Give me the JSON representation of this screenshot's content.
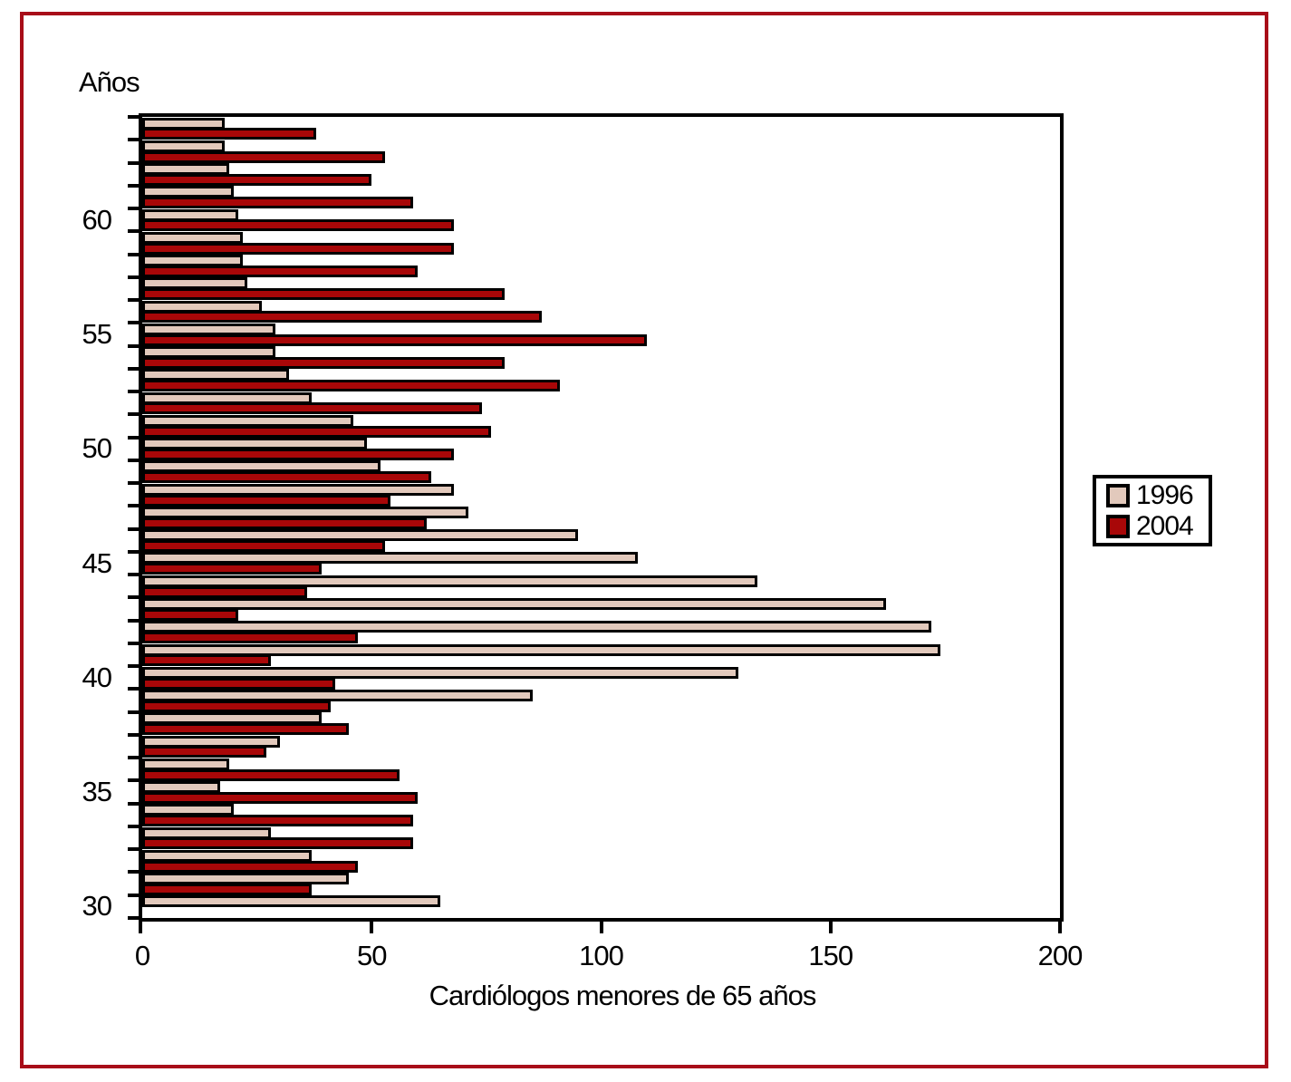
{
  "page": {
    "frame_color": "#A80D18",
    "background": "#FFFFFF"
  },
  "chart_data": {
    "type": "bar",
    "orientation": "horizontal",
    "title": "",
    "xlabel": "Cardiólogos menores de 65 años",
    "ylabel": "Años",
    "xlim": [
      0,
      200
    ],
    "x_ticks": [
      0,
      50,
      100,
      150,
      200
    ],
    "y_labeled_ages": [
      60,
      55,
      50,
      45,
      40,
      35,
      30
    ],
    "grid": false,
    "legend_position": "right-outside",
    "ages": [
      64,
      63,
      62,
      61,
      60,
      59,
      58,
      57,
      56,
      55,
      54,
      53,
      52,
      51,
      50,
      49,
      48,
      47,
      46,
      45,
      44,
      43,
      42,
      41,
      40,
      39,
      38,
      37,
      36,
      35,
      34,
      33,
      32,
      31,
      30
    ],
    "series": [
      {
        "name": "1996",
        "color": "#E2C9BC",
        "values": [
          18,
          18,
          19,
          20,
          21,
          22,
          22,
          23,
          26,
          29,
          29,
          32,
          37,
          46,
          49,
          52,
          68,
          71,
          95,
          108,
          134,
          162,
          172,
          174,
          130,
          85,
          39,
          30,
          19,
          17,
          20,
          28,
          37,
          45,
          65
        ]
      },
      {
        "name": "2004",
        "color": "#A80708",
        "values": [
          38,
          53,
          50,
          59,
          68,
          68,
          60,
          79,
          87,
          110,
          79,
          91,
          74,
          76,
          68,
          63,
          54,
          62,
          53,
          39,
          36,
          21,
          47,
          28,
          42,
          41,
          45,
          27,
          56,
          60,
          59,
          59,
          47,
          37,
          0
        ]
      }
    ]
  }
}
